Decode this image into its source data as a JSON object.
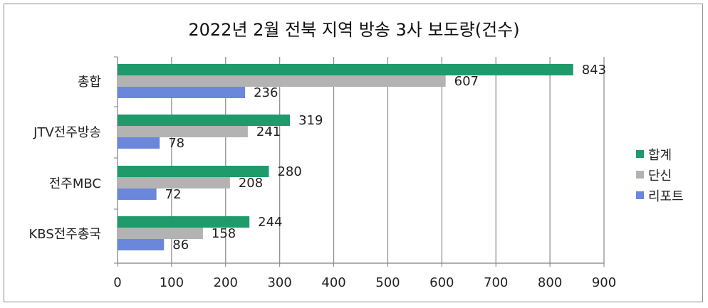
{
  "chart_data": {
    "type": "bar",
    "orientation": "horizontal",
    "title": "2022년 2월 전북 지역 방송 3사 보도량(건수)",
    "categories": [
      "총합",
      "JTV전주방송",
      "전주MBC",
      "KBS전주총국"
    ],
    "series": [
      {
        "name": "합계",
        "color": "#1f9a6a",
        "values": [
          843,
          319,
          280,
          244
        ]
      },
      {
        "name": "단신",
        "color": "#b3b3b3",
        "values": [
          607,
          241,
          208,
          158
        ]
      },
      {
        "name": "리포트",
        "color": "#6a87dc",
        "values": [
          236,
          78,
          72,
          86
        ]
      }
    ],
    "xlim": [
      0,
      900
    ],
    "xticks": [
      0,
      100,
      200,
      300,
      400,
      500,
      600,
      700,
      800,
      900
    ],
    "grid": true,
    "legend_position": "right"
  }
}
